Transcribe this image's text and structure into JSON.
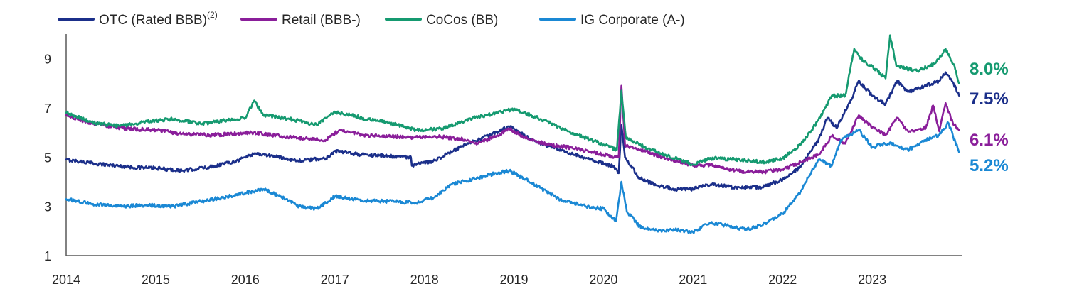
{
  "chart_data": {
    "type": "line",
    "title": "",
    "xlabel": "",
    "ylabel": "",
    "ylim": [
      1,
      10
    ],
    "xlim": [
      2014,
      2024
    ],
    "y_ticks": [
      1,
      3,
      5,
      7,
      9
    ],
    "x_ticks": [
      2014,
      2015,
      2016,
      2017,
      2018,
      2019,
      2020,
      2021,
      2022,
      2023
    ],
    "grid": false,
    "legend_position": "top-left",
    "series": [
      {
        "name": "OTC (Rated BBB)",
        "name_superscript": "(2)",
        "color": "#1b2f8a",
        "end_label": "7.5%",
        "points": [
          [
            2014.0,
            4.9
          ],
          [
            2014.3,
            4.75
          ],
          [
            2014.7,
            4.6
          ],
          [
            2015.0,
            4.55
          ],
          [
            2015.3,
            4.45
          ],
          [
            2015.6,
            4.6
          ],
          [
            2015.9,
            4.85
          ],
          [
            2016.1,
            5.15
          ],
          [
            2016.3,
            5.05
          ],
          [
            2016.6,
            4.85
          ],
          [
            2016.9,
            4.95
          ],
          [
            2017.0,
            5.25
          ],
          [
            2017.3,
            5.1
          ],
          [
            2017.6,
            5.05
          ],
          [
            2017.85,
            5.0
          ],
          [
            2017.86,
            4.65
          ],
          [
            2018.1,
            4.85
          ],
          [
            2018.4,
            5.4
          ],
          [
            2018.6,
            5.7
          ],
          [
            2018.8,
            6.0
          ],
          [
            2018.95,
            6.25
          ],
          [
            2019.2,
            5.7
          ],
          [
            2019.5,
            5.3
          ],
          [
            2019.8,
            4.95
          ],
          [
            2020.1,
            4.65
          ],
          [
            2020.17,
            4.35
          ],
          [
            2020.2,
            6.3
          ],
          [
            2020.24,
            5.0
          ],
          [
            2020.4,
            4.15
          ],
          [
            2020.6,
            3.85
          ],
          [
            2020.8,
            3.7
          ],
          [
            2021.0,
            3.7
          ],
          [
            2021.2,
            3.9
          ],
          [
            2021.4,
            3.8
          ],
          [
            2021.6,
            3.75
          ],
          [
            2021.8,
            3.8
          ],
          [
            2022.0,
            4.1
          ],
          [
            2022.2,
            4.6
          ],
          [
            2022.4,
            5.7
          ],
          [
            2022.5,
            6.6
          ],
          [
            2022.6,
            6.2
          ],
          [
            2022.75,
            7.2
          ],
          [
            2022.85,
            8.1
          ],
          [
            2023.0,
            7.5
          ],
          [
            2023.15,
            7.15
          ],
          [
            2023.28,
            8.1
          ],
          [
            2023.4,
            7.65
          ],
          [
            2023.6,
            7.9
          ],
          [
            2023.75,
            8.1
          ],
          [
            2023.82,
            8.45
          ],
          [
            2023.9,
            8.05
          ],
          [
            2023.97,
            7.5
          ]
        ]
      },
      {
        "name": "Retail (BBB-)",
        "color": "#8a1e9a",
        "end_label": "6.1%",
        "points": [
          [
            2014.0,
            6.7
          ],
          [
            2014.3,
            6.35
          ],
          [
            2014.7,
            6.15
          ],
          [
            2015.0,
            6.1
          ],
          [
            2015.3,
            5.95
          ],
          [
            2015.6,
            5.9
          ],
          [
            2015.9,
            5.95
          ],
          [
            2016.1,
            6.0
          ],
          [
            2016.4,
            5.85
          ],
          [
            2016.7,
            5.75
          ],
          [
            2016.9,
            5.7
          ],
          [
            2017.05,
            6.1
          ],
          [
            2017.3,
            5.9
          ],
          [
            2017.6,
            5.85
          ],
          [
            2017.9,
            5.8
          ],
          [
            2018.1,
            5.85
          ],
          [
            2018.4,
            5.75
          ],
          [
            2018.6,
            5.55
          ],
          [
            2018.8,
            5.85
          ],
          [
            2018.95,
            6.15
          ],
          [
            2019.15,
            5.75
          ],
          [
            2019.4,
            5.5
          ],
          [
            2019.7,
            5.35
          ],
          [
            2020.0,
            5.1
          ],
          [
            2020.17,
            5.0
          ],
          [
            2020.2,
            7.9
          ],
          [
            2020.24,
            5.5
          ],
          [
            2020.4,
            5.3
          ],
          [
            2020.7,
            4.95
          ],
          [
            2021.0,
            4.65
          ],
          [
            2021.2,
            4.7
          ],
          [
            2021.4,
            4.5
          ],
          [
            2021.6,
            4.4
          ],
          [
            2021.8,
            4.4
          ],
          [
            2022.0,
            4.5
          ],
          [
            2022.2,
            4.8
          ],
          [
            2022.4,
            5.1
          ],
          [
            2022.55,
            5.85
          ],
          [
            2022.7,
            5.55
          ],
          [
            2022.85,
            6.7
          ],
          [
            2023.0,
            6.2
          ],
          [
            2023.15,
            5.9
          ],
          [
            2023.28,
            6.6
          ],
          [
            2023.4,
            6.05
          ],
          [
            2023.6,
            6.2
          ],
          [
            2023.68,
            7.1
          ],
          [
            2023.75,
            6.05
          ],
          [
            2023.82,
            7.2
          ],
          [
            2023.9,
            6.4
          ],
          [
            2023.97,
            6.1
          ]
        ]
      },
      {
        "name": "CoCos (BB)",
        "color": "#159a70",
        "end_label": "8.0%",
        "points": [
          [
            2014.0,
            6.8
          ],
          [
            2014.3,
            6.4
          ],
          [
            2014.6,
            6.25
          ],
          [
            2014.9,
            6.45
          ],
          [
            2015.2,
            6.55
          ],
          [
            2015.5,
            6.35
          ],
          [
            2015.8,
            6.5
          ],
          [
            2016.0,
            6.6
          ],
          [
            2016.1,
            7.3
          ],
          [
            2016.2,
            6.7
          ],
          [
            2016.5,
            6.55
          ],
          [
            2016.8,
            6.3
          ],
          [
            2017.0,
            6.85
          ],
          [
            2017.3,
            6.6
          ],
          [
            2017.6,
            6.4
          ],
          [
            2017.9,
            6.1
          ],
          [
            2018.2,
            6.15
          ],
          [
            2018.5,
            6.55
          ],
          [
            2018.8,
            6.8
          ],
          [
            2019.0,
            6.95
          ],
          [
            2019.3,
            6.55
          ],
          [
            2019.6,
            6.05
          ],
          [
            2019.9,
            5.65
          ],
          [
            2020.15,
            5.3
          ],
          [
            2020.2,
            7.7
          ],
          [
            2020.25,
            5.8
          ],
          [
            2020.5,
            5.35
          ],
          [
            2020.8,
            4.95
          ],
          [
            2021.0,
            4.7
          ],
          [
            2021.2,
            4.95
          ],
          [
            2021.5,
            4.9
          ],
          [
            2021.8,
            4.8
          ],
          [
            2022.0,
            4.95
          ],
          [
            2022.2,
            5.5
          ],
          [
            2022.4,
            6.5
          ],
          [
            2022.55,
            7.5
          ],
          [
            2022.7,
            7.5
          ],
          [
            2022.8,
            9.4
          ],
          [
            2022.9,
            8.9
          ],
          [
            2023.0,
            8.7
          ],
          [
            2023.15,
            8.2
          ],
          [
            2023.2,
            9.95
          ],
          [
            2023.27,
            8.7
          ],
          [
            2023.5,
            8.5
          ],
          [
            2023.7,
            8.8
          ],
          [
            2023.82,
            9.4
          ],
          [
            2023.92,
            8.7
          ],
          [
            2023.97,
            8.0
          ]
        ]
      },
      {
        "name": "IG Corporate (A-)",
        "color": "#1a88d4",
        "end_label": "5.2%",
        "points": [
          [
            2014.0,
            3.3
          ],
          [
            2014.3,
            3.1
          ],
          [
            2014.6,
            3.0
          ],
          [
            2014.9,
            3.05
          ],
          [
            2015.2,
            3.0
          ],
          [
            2015.5,
            3.2
          ],
          [
            2015.8,
            3.4
          ],
          [
            2016.0,
            3.55
          ],
          [
            2016.2,
            3.7
          ],
          [
            2016.4,
            3.4
          ],
          [
            2016.6,
            3.0
          ],
          [
            2016.8,
            2.9
          ],
          [
            2017.0,
            3.4
          ],
          [
            2017.3,
            3.25
          ],
          [
            2017.6,
            3.2
          ],
          [
            2017.9,
            3.15
          ],
          [
            2018.1,
            3.35
          ],
          [
            2018.3,
            3.9
          ],
          [
            2018.6,
            4.15
          ],
          [
            2018.8,
            4.35
          ],
          [
            2018.95,
            4.45
          ],
          [
            2019.2,
            3.95
          ],
          [
            2019.5,
            3.3
          ],
          [
            2019.8,
            3.0
          ],
          [
            2020.0,
            2.9
          ],
          [
            2020.14,
            2.4
          ],
          [
            2020.2,
            4.0
          ],
          [
            2020.26,
            2.8
          ],
          [
            2020.4,
            2.2
          ],
          [
            2020.6,
            2.0
          ],
          [
            2020.8,
            2.05
          ],
          [
            2021.0,
            1.95
          ],
          [
            2021.2,
            2.35
          ],
          [
            2021.4,
            2.2
          ],
          [
            2021.6,
            2.05
          ],
          [
            2021.8,
            2.3
          ],
          [
            2022.0,
            2.7
          ],
          [
            2022.2,
            3.6
          ],
          [
            2022.4,
            4.9
          ],
          [
            2022.55,
            4.65
          ],
          [
            2022.65,
            5.7
          ],
          [
            2022.85,
            6.1
          ],
          [
            2023.0,
            5.4
          ],
          [
            2023.2,
            5.6
          ],
          [
            2023.4,
            5.3
          ],
          [
            2023.6,
            5.7
          ],
          [
            2023.75,
            5.9
          ],
          [
            2023.85,
            6.4
          ],
          [
            2023.93,
            5.6
          ],
          [
            2023.97,
            5.2
          ]
        ]
      }
    ]
  }
}
